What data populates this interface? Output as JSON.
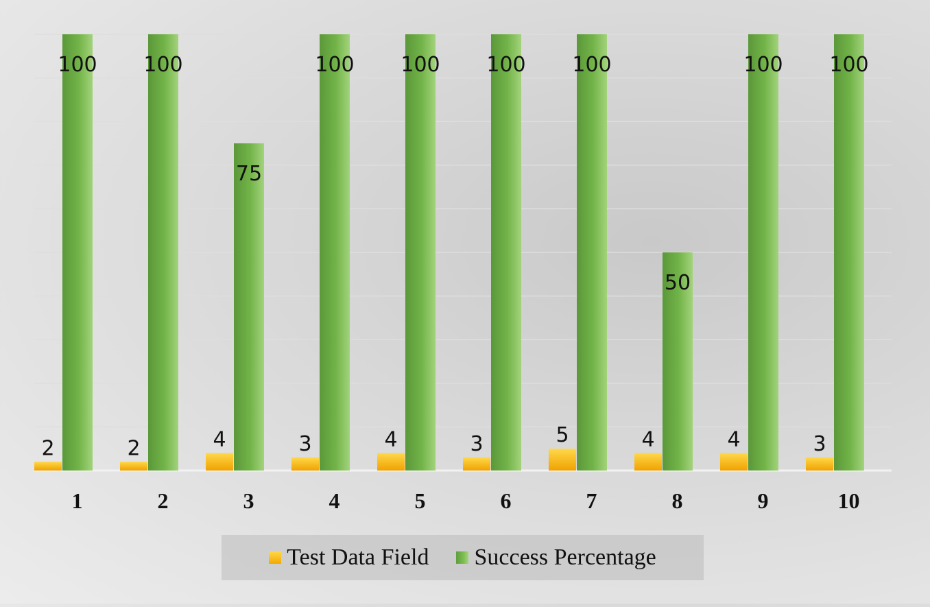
{
  "chart_data": {
    "type": "bar",
    "categories": [
      "1",
      "2",
      "3",
      "4",
      "5",
      "6",
      "7",
      "8",
      "9",
      "10"
    ],
    "series": [
      {
        "name": "Test Data Field",
        "values": [
          2,
          2,
          4,
          3,
          4,
          3,
          5,
          4,
          4,
          3
        ],
        "color": "#f3a900"
      },
      {
        "name": "Success Percentage",
        "values": [
          100,
          100,
          75,
          100,
          100,
          100,
          100,
          50,
          100,
          100
        ],
        "color": "#6fb043"
      }
    ],
    "ylim": [
      0,
      100
    ],
    "grid": true,
    "legend_position": "bottom",
    "data_labels": true
  },
  "legend": {
    "items": [
      {
        "label": "Test Data Field"
      },
      {
        "label": "Success Percentage"
      }
    ]
  }
}
